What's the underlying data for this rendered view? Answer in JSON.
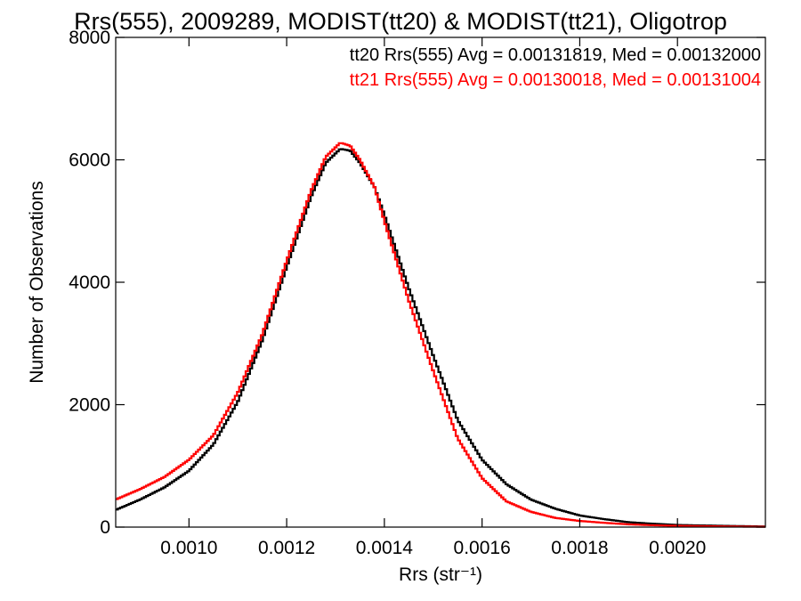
{
  "chart_data": {
    "type": "line",
    "title": "Rrs(555), 2009289, MODIST(tt20) & MODIST(tt21), Oligotrop",
    "xlabel": "Rrs (str⁻¹)",
    "ylabel": "Number of Observations",
    "xlim": [
      0.00085,
      0.00218
    ],
    "ylim": [
      0,
      8000
    ],
    "xticks": [
      {
        "value": 0.001,
        "label": "0.0010"
      },
      {
        "value": 0.0012,
        "label": "0.0012"
      },
      {
        "value": 0.0014,
        "label": "0.0014"
      },
      {
        "value": 0.0016,
        "label": "0.0016"
      },
      {
        "value": 0.0018,
        "label": "0.0018"
      },
      {
        "value": 0.002,
        "label": "0.0020"
      }
    ],
    "yticks": [
      {
        "value": 0,
        "label": "0"
      },
      {
        "value": 2000,
        "label": "2000"
      },
      {
        "value": 4000,
        "label": "4000"
      },
      {
        "value": 6000,
        "label": "6000"
      },
      {
        "value": 8000,
        "label": "8000"
      }
    ],
    "grid": false,
    "plot_style": "histogram-step",
    "annotations": [
      {
        "text": "tt20 Rrs(555) Avg = 0.00131819, Med = 0.00132000",
        "color": "#000000"
      },
      {
        "text": "tt21 Rrs(555) Avg = 0.00130018, Med = 0.00131004",
        "color": "#ff0000"
      }
    ],
    "series": [
      {
        "color": "#000000",
        "x": [
          0.00085,
          0.0009,
          0.00095,
          0.001,
          0.00105,
          0.0011,
          0.00115,
          0.0012,
          0.00125,
          0.00128,
          0.00131,
          0.00133,
          0.00135,
          0.00138,
          0.0014,
          0.00145,
          0.0015,
          0.00155,
          0.0016,
          0.00165,
          0.0017,
          0.00175,
          0.0018,
          0.00185,
          0.0019,
          0.00195,
          0.002,
          0.0021,
          0.00218
        ],
        "y": [
          280,
          450,
          650,
          920,
          1350,
          2050,
          3050,
          4250,
          5400,
          5950,
          6180,
          6150,
          5950,
          5550,
          5100,
          3900,
          2800,
          1750,
          1100,
          700,
          450,
          300,
          190,
          130,
          80,
          55,
          35,
          20,
          10
        ]
      },
      {
        "color": "#ff0000",
        "x": [
          0.00085,
          0.0009,
          0.00095,
          0.001,
          0.00105,
          0.0011,
          0.00115,
          0.0012,
          0.00125,
          0.00128,
          0.00131,
          0.00133,
          0.00135,
          0.00138,
          0.0014,
          0.00145,
          0.0015,
          0.00155,
          0.0016,
          0.00165,
          0.0017,
          0.00175,
          0.0018,
          0.00185,
          0.0019,
          0.00195,
          0.002,
          0.0021,
          0.00218
        ],
        "y": [
          450,
          620,
          820,
          1100,
          1500,
          2200,
          3150,
          4350,
          5500,
          6050,
          6280,
          6230,
          6000,
          5550,
          5000,
          3700,
          2550,
          1450,
          800,
          420,
          250,
          150,
          100,
          70,
          45,
          30,
          20,
          10,
          5
        ]
      }
    ]
  }
}
